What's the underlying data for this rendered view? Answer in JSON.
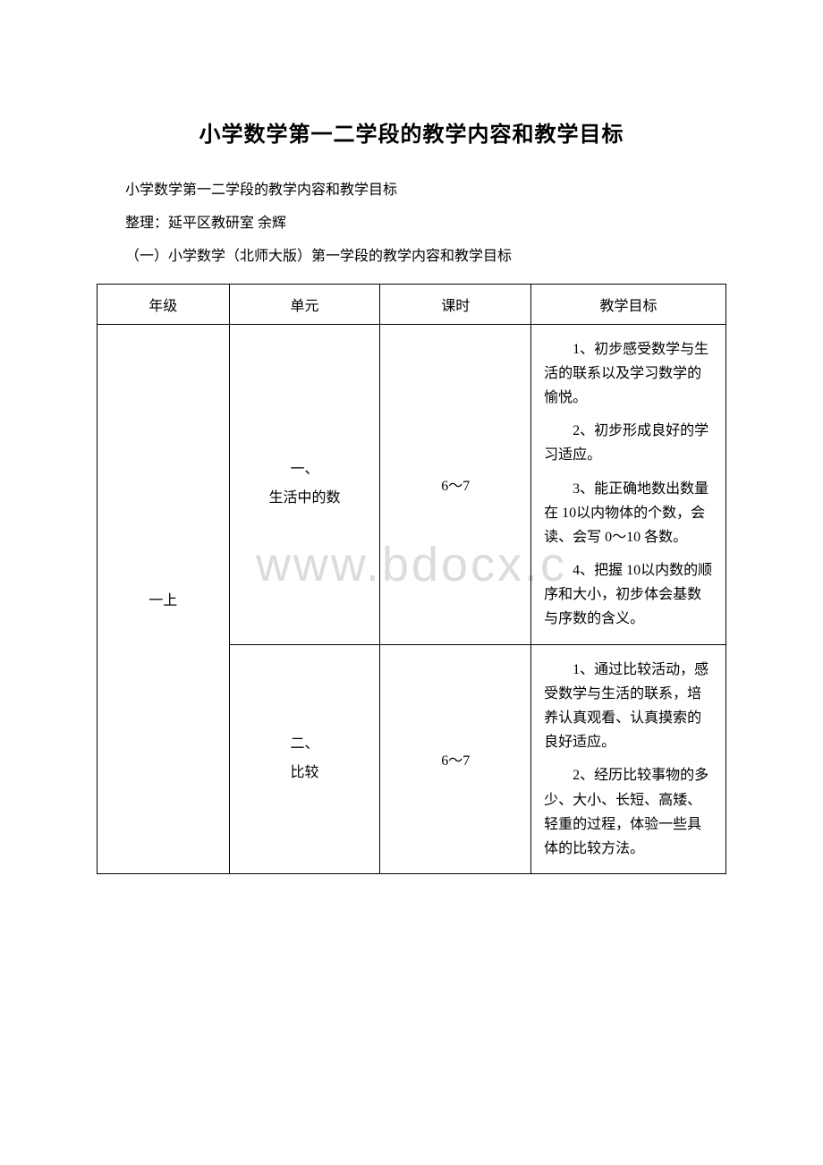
{
  "title": "小学数学第一二学段的教学内容和教学目标",
  "paragraphs": [
    "小学数学第一二学段的教学内容和教学目标",
    "整理：延平区教研室 余辉",
    "（一）小学数学（北师大版）第一学段的教学内容和教学目标"
  ],
  "watermark": "www.bdocx.c",
  "table": {
    "headers": [
      "年级",
      "单元",
      "课时",
      "教学目标"
    ],
    "grade": "一上",
    "rows": [
      {
        "unit_line1": "一、",
        "unit_line2": "生活中的数",
        "hours": "6～7",
        "goals": [
          "1、初步感受数学与生活的联系以及学习数学的愉悦。",
          "2、初步形成良好的学习适应。",
          "3、能正确地数出数量在 10以内物体的个数，会读、会写 0～10 各数。",
          "4、把握 10以内数的顺序和大小，初步体会基数与序数的含义。"
        ]
      },
      {
        "unit_line1": "二、",
        "unit_line2": "比较",
        "hours": "6～7",
        "goals": [
          "1、通过比较活动，感受数学与生活的联系，培养认真观看、认真摸索的良好适应。",
          "2、经历比较事物的多少、大小、长短、高矮、轻重的过程，体验一些具体的比较方法。"
        ]
      }
    ]
  }
}
